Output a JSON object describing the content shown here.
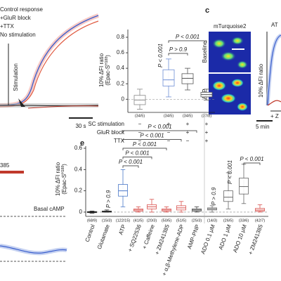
{
  "chart_data": [
    {
      "type": "box",
      "ylabel": {
        "line1": "10% ΔFI ratio",
        "pre": "(Epac-S",
        "sup": "H188",
        "post": ")"
      },
      "ylim": [
        -0.17,
        0.9
      ],
      "yticks": [
        0,
        0.2,
        0.4,
        0.6,
        0.8
      ],
      "counts": [
        "(34/5)",
        "(34/5)",
        "(34/5)",
        "(37/8)"
      ],
      "boxes": [
        {
          "whislo": -0.13,
          "q1": -0.07,
          "med": -0.01,
          "q3": 0.05,
          "whishi": 0.13
        },
        {
          "whislo": 0.03,
          "q1": 0.17,
          "med": 0.25,
          "q3": 0.38,
          "whishi": 0.52
        },
        {
          "whislo": 0.12,
          "q1": 0.2,
          "med": 0.27,
          "q3": 0.33,
          "whishi": 0.4
        },
        {
          "whislo": -0.01,
          "q1": 0.03,
          "med": 0.06,
          "q3": 0.09,
          "whishi": 0.13
        }
      ],
      "colors": [
        "#888888",
        "#6f8fd6",
        "#555555",
        "#555555"
      ],
      "conditions": [
        {
          "name": "SC stimulation",
          "signs": [
            "−",
            "+",
            "+",
            "+"
          ]
        },
        {
          "name": "GluR block",
          "signs": [
            "−",
            "−",
            "+",
            "+"
          ]
        },
        {
          "name": "TTX",
          "signs": [
            "−",
            "−",
            "−",
            "+"
          ]
        }
      ],
      "annotations": [
        "P < 0.001",
        "P < 0.001",
        "P > 0.9"
      ]
    },
    {
      "type": "box",
      "label": "e",
      "ylabel": {
        "line1": "10% ΔFI ratio",
        "pre": "(Epac-S",
        "sup": "H188",
        "post": ")"
      },
      "ylim": [
        -0.04,
        0.62
      ],
      "yticks": [
        0,
        0.2,
        0.4,
        0.6
      ],
      "categories": [
        "Control",
        "Glutamate",
        "ATP",
        "+ SQ22536",
        "+ Caffeine",
        "+ ZM241385",
        "+ α,β-Methylene-ADP",
        "AMP-PNP",
        "ADO 0.1 μM",
        "ADO 1 μM",
        "ADO 10 μM",
        "+ ZM241385"
      ],
      "counts": [
        "(68/9)",
        "(15/3)",
        "(122/15)",
        "(41/5)",
        "(20/3)",
        "(50/5)",
        "(51/5)",
        "(25/3)",
        "(14/3)",
        "(26/5)",
        "(33/6)",
        "(42/7)"
      ],
      "boxes": [
        {
          "whislo": -0.01,
          "q1": -0.005,
          "med": 0,
          "q3": 0.005,
          "whishi": 0.01
        },
        {
          "whislo": 0,
          "q1": 0,
          "med": 0.005,
          "q3": 0.01,
          "whishi": 0.02
        },
        {
          "whislo": 0.05,
          "q1": 0.15,
          "med": 0.2,
          "q3": 0.26,
          "whishi": 0.4
        },
        {
          "whislo": 0,
          "q1": 0.01,
          "med": 0.02,
          "q3": 0.03,
          "whishi": 0.05
        },
        {
          "whislo": 0,
          "q1": 0.03,
          "med": 0.05,
          "q3": 0.07,
          "whishi": 0.12
        },
        {
          "whislo": 0,
          "q1": 0.01,
          "med": 0.02,
          "q3": 0.03,
          "whishi": 0.05
        },
        {
          "whislo": 0,
          "q1": 0.02,
          "med": 0.04,
          "q3": 0.06,
          "whishi": 0.1
        },
        {
          "whislo": 0,
          "q1": 0.01,
          "med": 0.02,
          "q3": 0.03,
          "whishi": 0.05
        },
        {
          "whislo": 0,
          "q1": 0.02,
          "med": 0.03,
          "q3": 0.04,
          "whishi": 0.06
        },
        {
          "whislo": 0.03,
          "q1": 0.1,
          "med": 0.14,
          "q3": 0.2,
          "whishi": 0.37
        },
        {
          "whislo": 0.08,
          "q1": 0.17,
          "med": 0.24,
          "q3": 0.32,
          "whishi": 0.45
        },
        {
          "whislo": 0,
          "q1": 0.01,
          "med": 0.02,
          "q3": 0.035,
          "whishi": 0.07
        }
      ],
      "colors": [
        "#222222",
        "#222222",
        "#4a78c8",
        "#d9534f",
        "#d9534f",
        "#d9534f",
        "#d9534f",
        "#444444",
        "#666666",
        "#666666",
        "#666666",
        "#d9534f"
      ],
      "annotations": [
        "P > 0.9",
        "P < 0.001",
        "P < 0.001",
        "P < 0.001",
        "P < 0.001",
        "P < 0.001",
        "P > 0.9",
        "P < 0.001",
        "P < 0.001"
      ]
    }
  ],
  "texts": {
    "legend": [
      "Control response",
      "+GluR block",
      "+TTX",
      "No stimulation"
    ],
    "stimulation": "Stimulation",
    "scale_a": "30 s",
    "panel_c": "c",
    "mturquoise": "mTurquoise2",
    "baseline": "Baseline",
    "atp": "ATP",
    "c_right_title": "AT",
    "c_ylabel": "10% ΔFI ratio",
    "c_drug": "+ Z",
    "scale_c": "5 min",
    "left_bottom_drug": "385",
    "basal": "Basal cAMP"
  }
}
